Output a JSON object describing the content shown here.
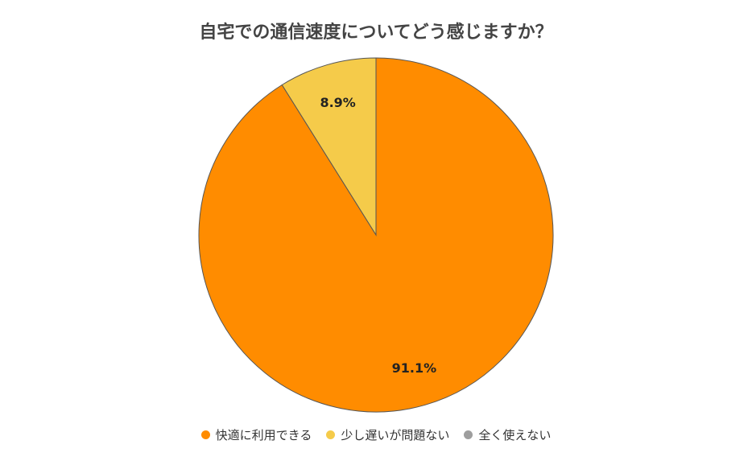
{
  "chart_data": {
    "type": "pie",
    "title": "自宅での通信速度についてどう感じますか？",
    "categories": [
      "快適に利用できる",
      "少し遅いが問題ない",
      "全く使えない"
    ],
    "values": [
      91.1,
      8.9,
      0
    ],
    "value_labels": [
      "91.1%",
      "8.9%",
      ""
    ],
    "colors": [
      "#FF8C00",
      "#F5CB4A",
      "#9E9E9E"
    ],
    "legend_position": "bottom"
  }
}
